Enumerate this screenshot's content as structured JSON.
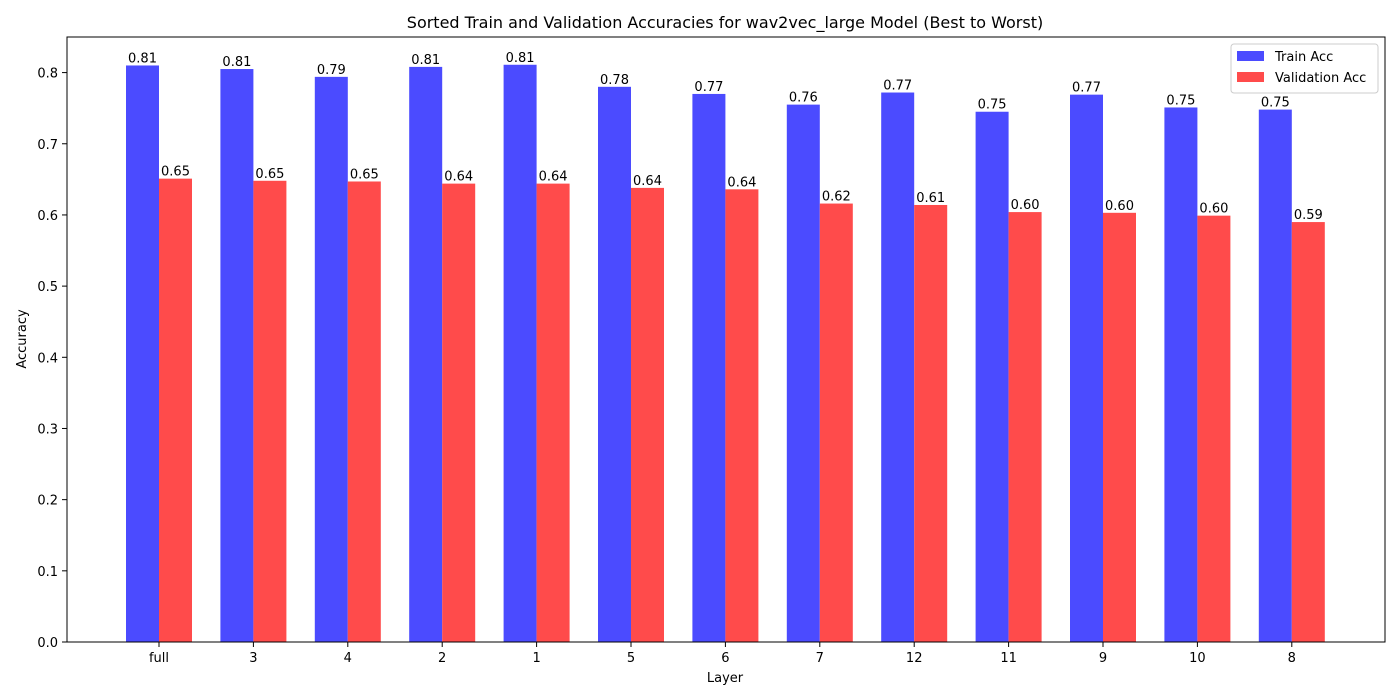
{
  "chart_data": {
    "type": "bar",
    "title": "Sorted Train and Validation Accuracies for wav2vec_large Model (Best to Worst)",
    "xlabel": "Layer",
    "ylabel": "Accuracy",
    "ylim": [
      0,
      0.85
    ],
    "yticks": [
      0.0,
      0.1,
      0.2,
      0.3,
      0.4,
      0.5,
      0.6,
      0.7,
      0.8
    ],
    "categories": [
      "full",
      "3",
      "4",
      "2",
      "1",
      "5",
      "6",
      "7",
      "12",
      "11",
      "9",
      "10",
      "8"
    ],
    "series": [
      {
        "name": "Train Acc",
        "color": "#4b4bff",
        "values": [
          0.81,
          0.805,
          0.794,
          0.808,
          0.811,
          0.78,
          0.77,
          0.755,
          0.772,
          0.745,
          0.769,
          0.751,
          0.748
        ],
        "labels": [
          "0.81",
          "0.81",
          "0.79",
          "0.81",
          "0.81",
          "0.78",
          "0.77",
          "0.76",
          "0.77",
          "0.75",
          "0.77",
          "0.75",
          "0.75"
        ]
      },
      {
        "name": "Validation Acc",
        "color": "#ff4b4b",
        "values": [
          0.651,
          0.648,
          0.647,
          0.644,
          0.644,
          0.638,
          0.636,
          0.616,
          0.614,
          0.604,
          0.603,
          0.599,
          0.59
        ],
        "labels": [
          "0.65",
          "0.65",
          "0.65",
          "0.64",
          "0.64",
          "0.64",
          "0.64",
          "0.62",
          "0.61",
          "0.60",
          "0.60",
          "0.60",
          "0.59"
        ]
      }
    ],
    "legend": "top-right",
    "grid": false
  }
}
